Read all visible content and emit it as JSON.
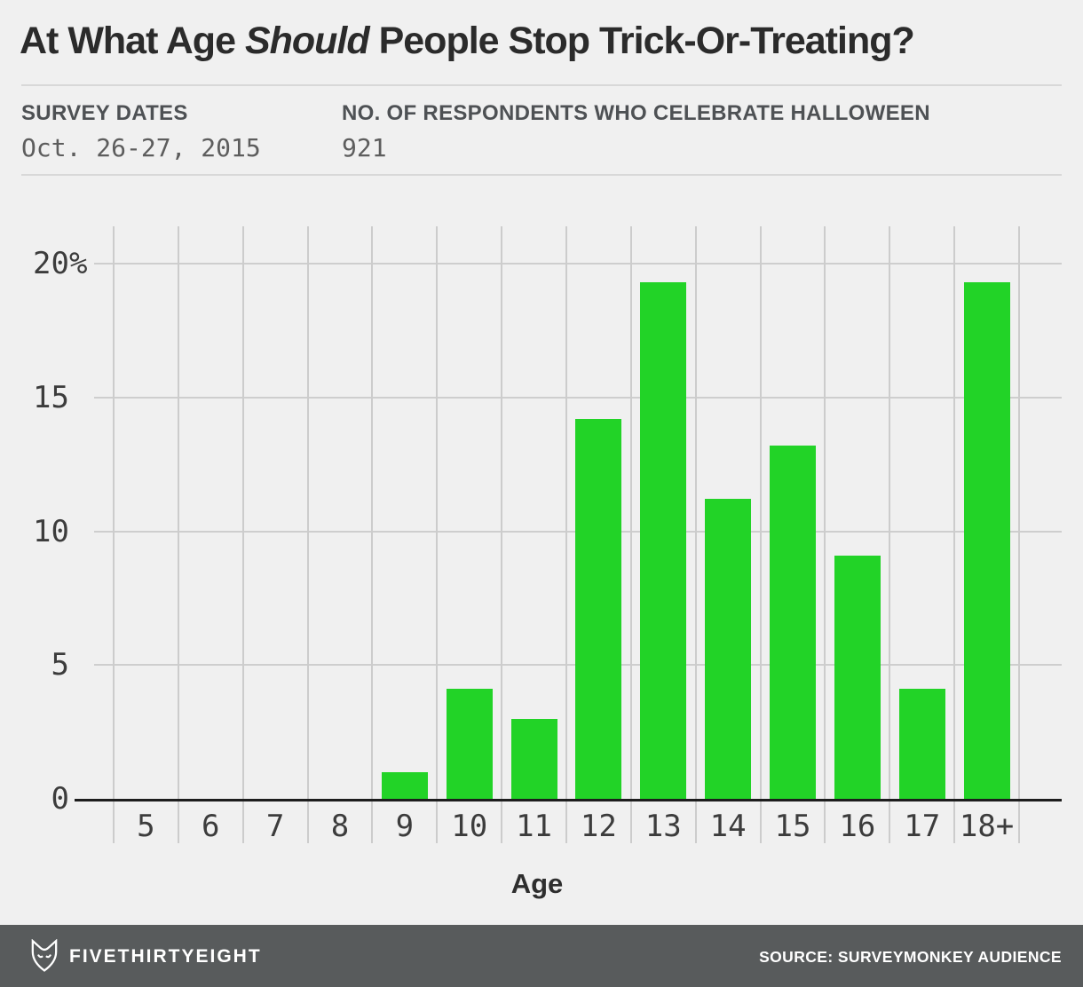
{
  "title": {
    "part1": "At What Age ",
    "italic": "Should",
    "part2": " People Stop Trick-Or-Treating?"
  },
  "meta": {
    "survey_dates_label": "SURVEY DATES",
    "survey_dates_value": "Oct. 26-27, 2015",
    "respondents_label": "NO. OF RESPONDENTS WHO CELEBRATE HALLOWEEN",
    "respondents_value": "921"
  },
  "chart_data": {
    "type": "bar",
    "title": "At What Age Should People Stop Trick-Or-Treating?",
    "categories": [
      "5",
      "6",
      "7",
      "8",
      "9",
      "10",
      "11",
      "12",
      "13",
      "14",
      "15",
      "16",
      "17",
      "18+"
    ],
    "values": [
      0,
      0,
      0,
      0,
      1.0,
      4.1,
      3.0,
      14.2,
      19.3,
      11.2,
      13.2,
      9.1,
      4.1,
      19.3
    ],
    "xlabel": "Age",
    "ylabel": "",
    "ylim": [
      0,
      20
    ],
    "yticks": [
      {
        "value": 0,
        "label": "0"
      },
      {
        "value": 5,
        "label": "5"
      },
      {
        "value": 10,
        "label": "10"
      },
      {
        "value": 15,
        "label": "15"
      },
      {
        "value": 20,
        "label": "20%"
      }
    ],
    "grid": true,
    "legend": "none",
    "bar_color": "#22d327"
  },
  "colors": {
    "background": "#f0f0f0",
    "bar": "#22d327",
    "gridline": "#cecece",
    "axis_line": "#1d1d1d",
    "footer_background": "#585b5c",
    "footer_text": "#ffffff"
  },
  "footer": {
    "brand": "FIVETHIRTYEIGHT",
    "logo_icon": "fivethirtyeight-fox-logo",
    "source": "SOURCE: SURVEYMONKEY AUDIENCE"
  }
}
